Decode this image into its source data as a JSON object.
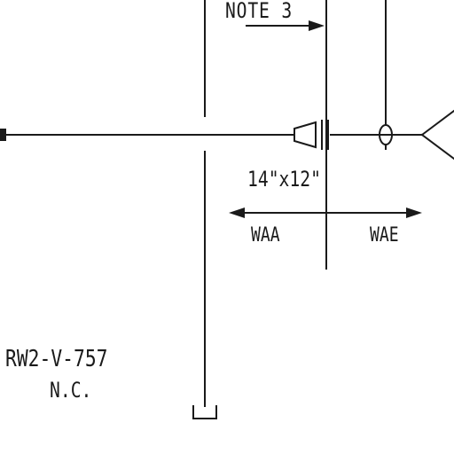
{
  "labels": {
    "note_ref": "NOTE 3",
    "pipe_size": "14\"x12\"",
    "zone_left": "WAA",
    "zone_right": "WAE",
    "valve_tag": "RW2-V-757",
    "valve_state": "N.C."
  },
  "colors": {
    "line": "#1a1a1a",
    "background": "#ffffff"
  }
}
